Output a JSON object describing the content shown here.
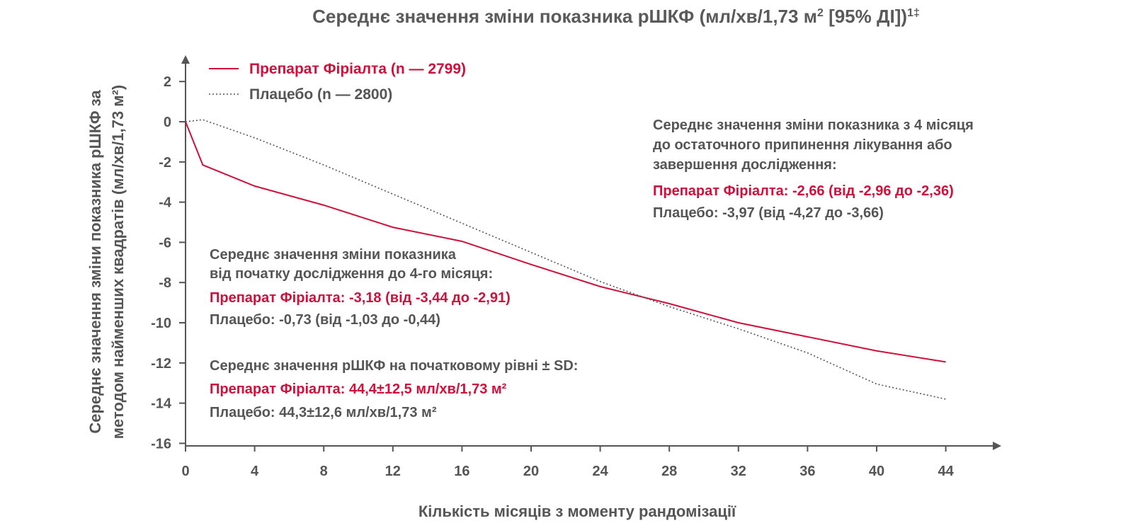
{
  "colors": {
    "drug": "#d0103a",
    "placebo": "#555555",
    "axis": "#555555",
    "text": "#555555"
  },
  "chart_data": {
    "type": "line",
    "title": "Середнє значення зміни показника рШКФ (мл/хв/1,73 м",
    "title_sup1": "2",
    "title_mid": " [95% ДІ])",
    "title_sup2": "1‡",
    "xlabel": "Кількість місяців з моменту рандомізації",
    "ylabel_line1": "Середнє значення зміни показника рШКФ за",
    "ylabel_line2": "методом найменших квадратів (мл/хв/1,73 м²)",
    "xlim": [
      0,
      46
    ],
    "ylim": [
      -16,
      3
    ],
    "x_ticks": [
      0,
      4,
      8,
      12,
      16,
      20,
      24,
      28,
      32,
      36,
      40,
      44
    ],
    "y_ticks": [
      2,
      0,
      -2,
      -4,
      -6,
      -8,
      -10,
      -12,
      -14,
      -16
    ],
    "series": [
      {
        "name": "Препарат Фіріалта (n — 2799)",
        "style": "solid",
        "x": [
          0,
          1,
          4,
          8,
          12,
          16,
          20,
          24,
          28,
          32,
          36,
          40,
          44
        ],
        "y": [
          0,
          -2.15,
          -3.2,
          -4.15,
          -5.25,
          -5.95,
          -7.1,
          -8.2,
          -9.05,
          -10.0,
          -10.7,
          -11.4,
          -11.95
        ]
      },
      {
        "name": "Плацебо (n — 2800)",
        "style": "dotted",
        "x": [
          0,
          1,
          4,
          8,
          12,
          16,
          20,
          24,
          28,
          32,
          36,
          40,
          44
        ],
        "y": [
          0,
          0.1,
          -0.8,
          -2.15,
          -3.6,
          -5.05,
          -6.5,
          -7.95,
          -9.2,
          -10.3,
          -11.5,
          -13.05,
          -13.8
        ]
      }
    ]
  },
  "notes": {
    "note1": {
      "heading": "Середнє значення зміни показника з 4 місяця",
      "heading2": "до остаточного припинення лікування або",
      "heading3": "завершення дослідження:",
      "drug": "Препарат Фіріалта: -2,66 (від -2,96 до -2,36)",
      "placebo": "Плацебо: -3,97 (від -4,27 до -3,66)"
    },
    "note2": {
      "heading": "Середнє значення зміни показника",
      "heading2": "від початку дослідження до 4-го місяця:",
      "drug": "Препарат Фіріалта: -3,18 (від -3,44 до -2,91)",
      "placebo": "Плацебо: -0,73 (від -1,03 до -0,44)"
    },
    "note3": {
      "heading": "Середнє значення рШКФ на початковому рівні ± SD:",
      "drug": "Препарат Фіріалта: 44,4±12,5 мл/хв/1,73 м²",
      "placebo": "Плацебо: 44,3±12,6 мл/хв/1,73 м²"
    }
  }
}
